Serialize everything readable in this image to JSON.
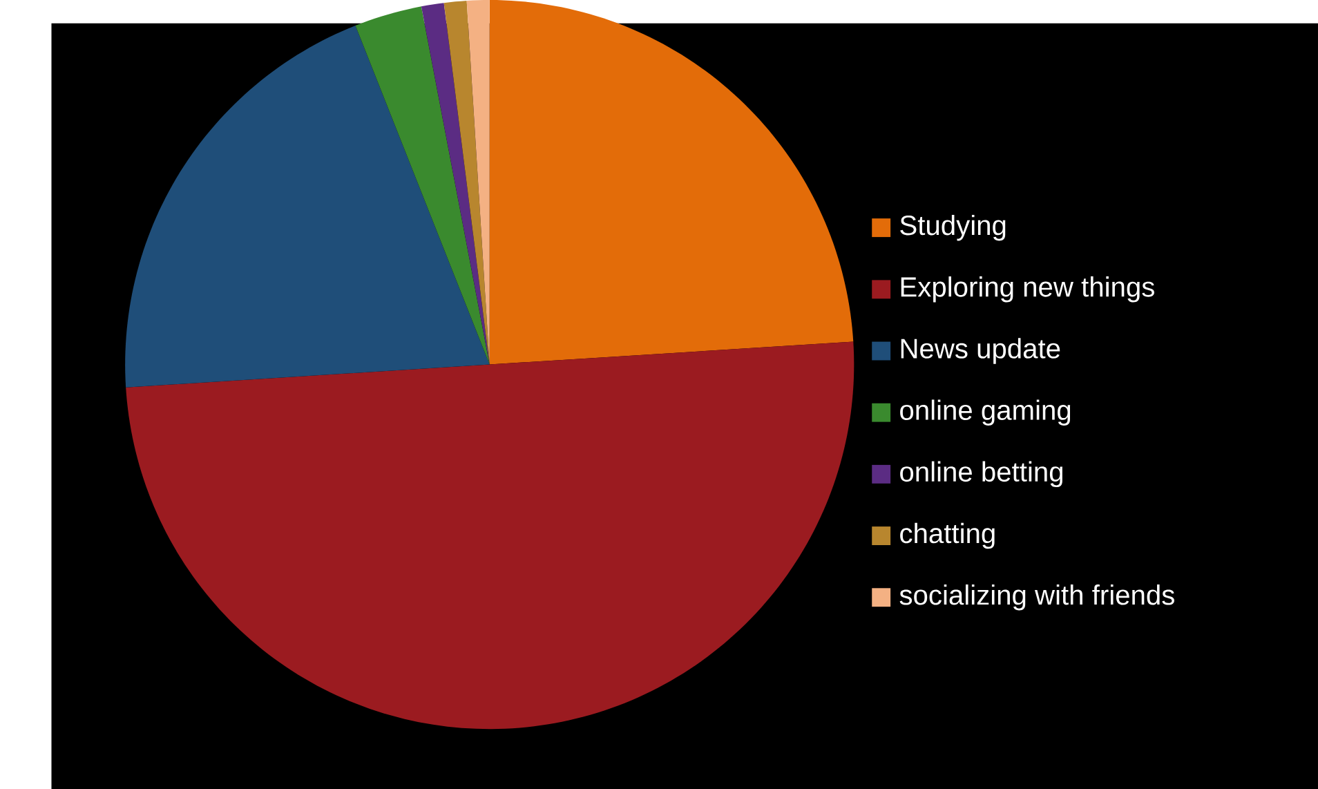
{
  "chart_data": {
    "type": "pie",
    "categories": [
      "Studying",
      "Exploring new things",
      "News update",
      "online gaming",
      "online betting",
      "chatting",
      "socializing with friends"
    ],
    "values": [
      24,
      50,
      20,
      3,
      1,
      1,
      1
    ],
    "colors": [
      "#e36c09",
      "#9b1b20",
      "#1f4e79",
      "#3a8a2e",
      "#5b2c83",
      "#b8862e",
      "#f4b183"
    ],
    "legend": "right"
  }
}
